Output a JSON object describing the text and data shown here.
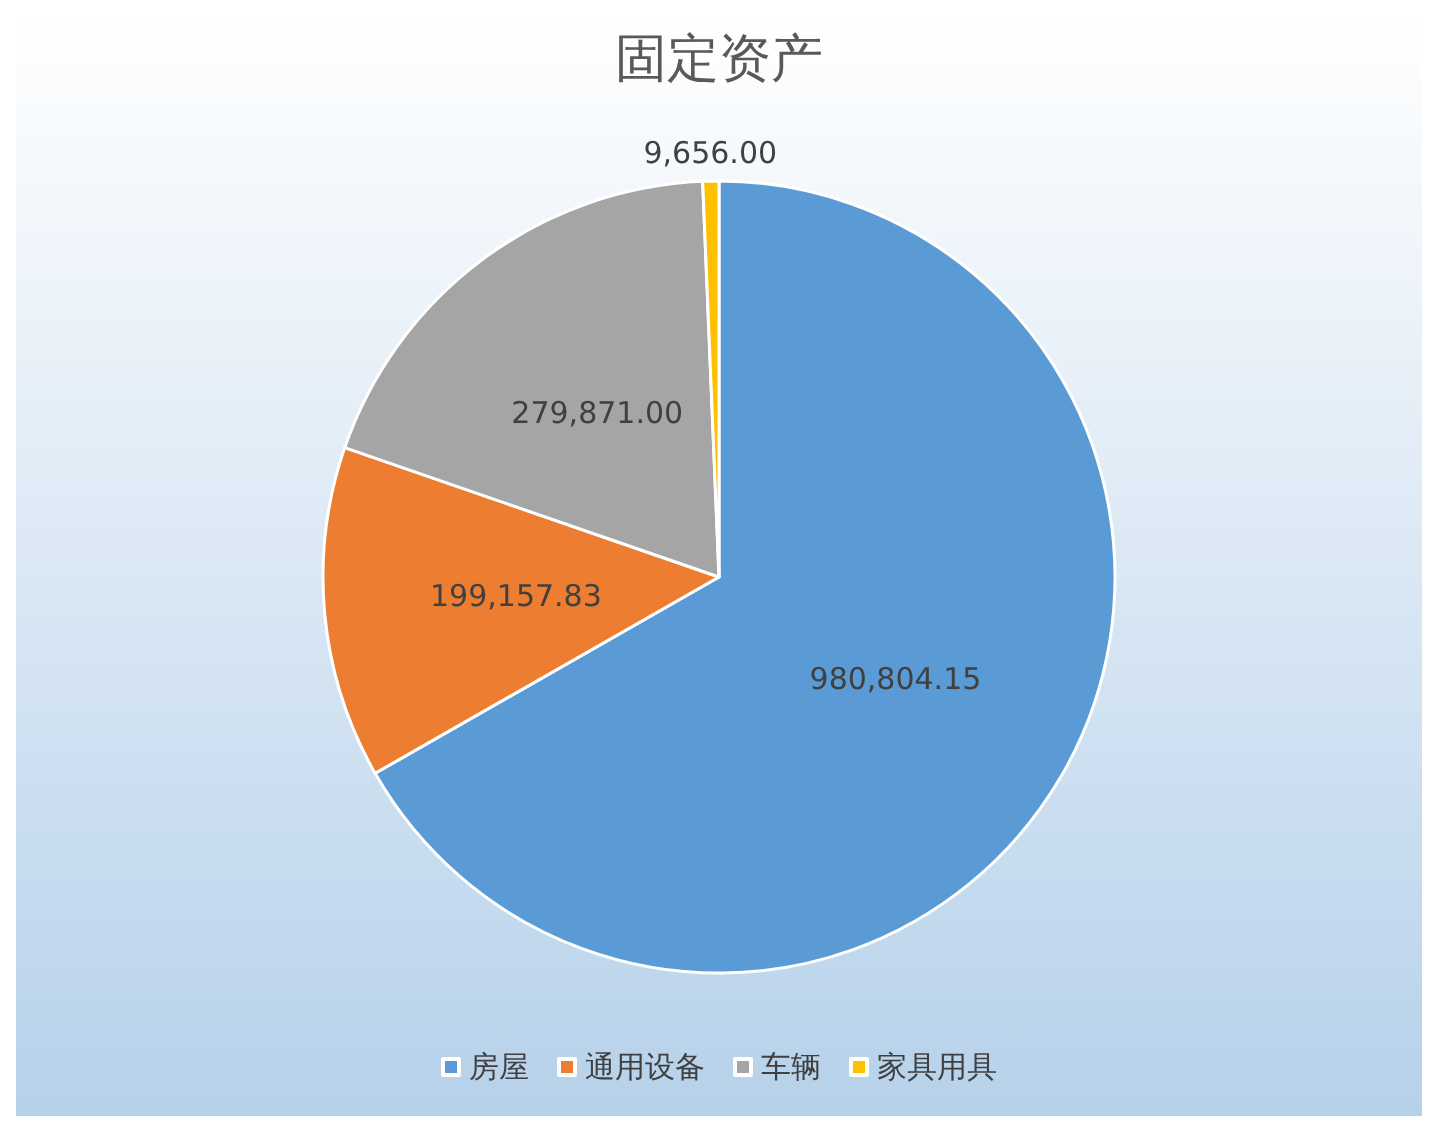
{
  "chart_data": {
    "type": "pie",
    "title": "固定资产",
    "categories": [
      "房屋",
      "通用设备",
      "车辆",
      "家具用具"
    ],
    "values": [
      980804.15,
      199157.83,
      279871.0,
      9656.0
    ],
    "colors": [
      "#5b9bd5",
      "#ed7d31",
      "#a5a5a5",
      "#ffc000"
    ],
    "value_labels": [
      "980,804.15",
      "199,157.83",
      "279,871.00",
      "9,656.00"
    ],
    "legend": "bottom"
  }
}
